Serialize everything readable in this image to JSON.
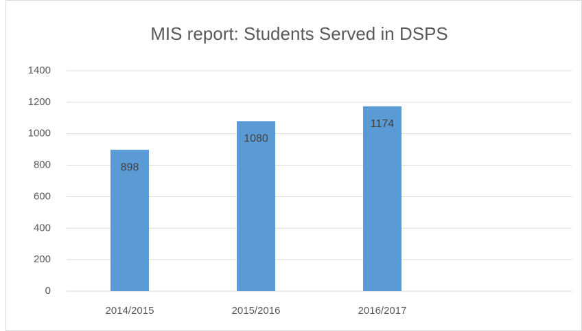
{
  "chart_data": {
    "type": "bar",
    "title": "MIS report: Students Served in DSPS",
    "categories": [
      "2014/2015",
      "2015/2016",
      "2016/2017",
      null
    ],
    "values": [
      898,
      1080,
      1174,
      null
    ],
    "color": "#5b9bd5",
    "ylim": [
      0,
      1400
    ],
    "yticks": [
      0,
      200,
      400,
      600,
      800,
      1000,
      1200,
      1400
    ],
    "grid": true,
    "data_labels": true
  }
}
